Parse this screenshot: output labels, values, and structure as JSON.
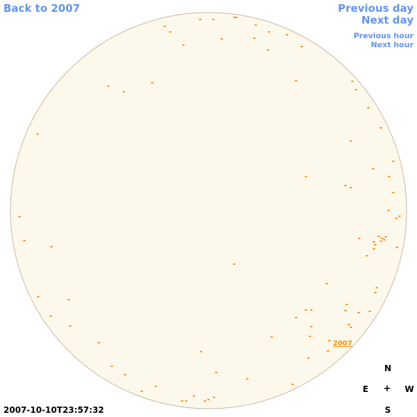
{
  "nav": {
    "back_label": "Back to 2007",
    "previous_day_label": "Previous day",
    "next_day_label": "Next day",
    "previous_hour_label": "Previous hour",
    "next_hour_label": "Next hour"
  },
  "timestamp": "2007-10-10T23:57:32",
  "compass": {
    "north": "N",
    "east": "E",
    "center": "+",
    "west": "W",
    "south": "S"
  },
  "year_label": "2007",
  "colors": {
    "link": "#6495ed",
    "disk_fill": "#fdf8ec",
    "disk_stroke": "#c8b9a0",
    "event_mark": "#ff8c00"
  },
  "event_marks_count": 99
}
